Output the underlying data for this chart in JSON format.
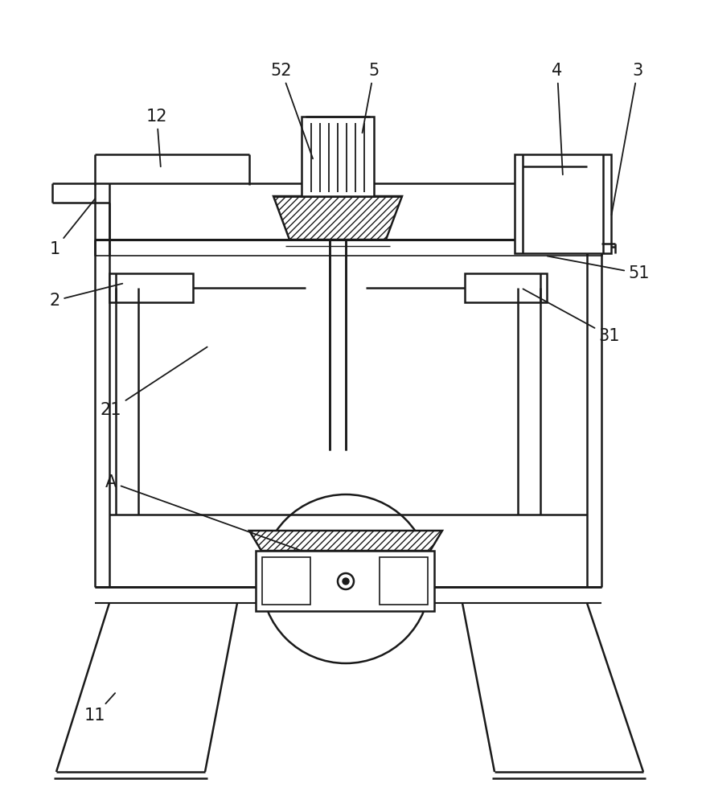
{
  "bg_color": "#ffffff",
  "line_color": "#1a1a1a",
  "lw": 1.8,
  "fig_width": 8.79,
  "fig_height": 10.0
}
